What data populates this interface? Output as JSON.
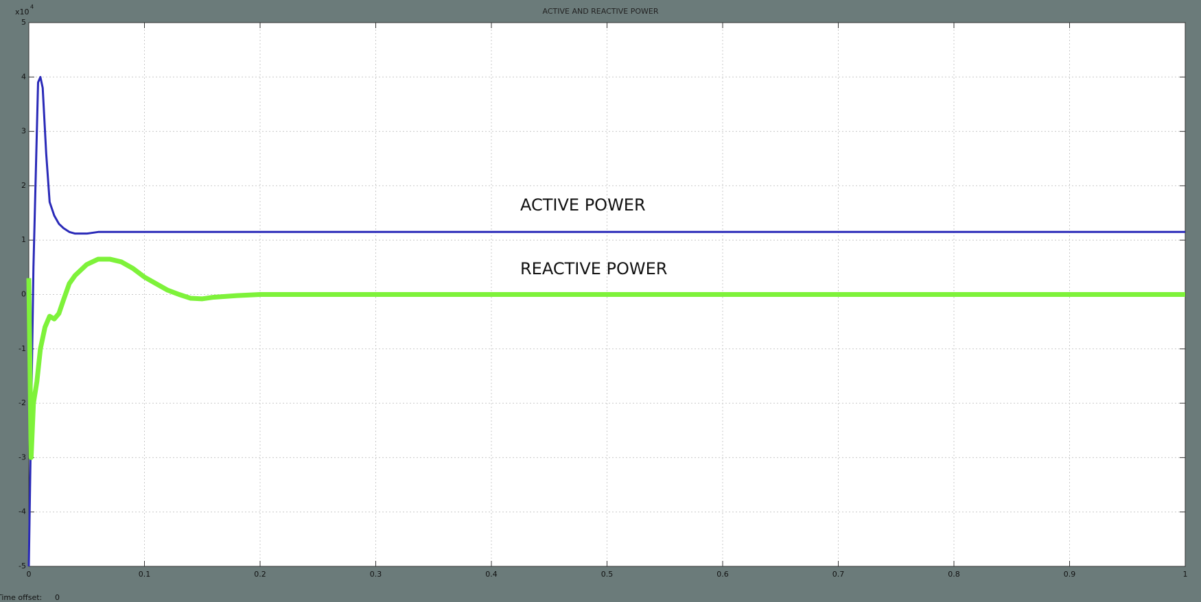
{
  "chart_data": {
    "type": "line",
    "title": "ACTIVE AND REACTIVE POWER",
    "y_scale_label": "x10",
    "y_scale_exponent": "4",
    "annotations": [
      "ACTIVE POWER",
      "REACTIVE POWER"
    ],
    "footer_label": "Time offset:",
    "footer_value": 0,
    "xlim": [
      0,
      1
    ],
    "xticks": [
      0,
      0.1,
      0.2,
      0.3,
      0.4,
      0.5,
      0.6,
      0.7,
      0.8,
      0.9,
      1
    ],
    "ylim": [
      -5,
      5
    ],
    "yticks": [
      -5,
      -4,
      -3,
      -2,
      -1,
      0,
      1,
      2,
      3,
      4,
      5
    ],
    "grid": true,
    "series": [
      {
        "name": "ACTIVE POWER",
        "color": "#2a2ab8",
        "x": [
          0,
          0.004,
          0.008,
          0.01,
          0.012,
          0.015,
          0.018,
          0.022,
          0.026,
          0.03,
          0.035,
          0.04,
          0.05,
          0.06,
          0.08,
          0.1,
          0.2,
          0.3,
          0.4,
          0.5,
          0.6,
          0.7,
          0.8,
          0.9,
          1
        ],
        "values": [
          -5,
          0.5,
          3.9,
          4.0,
          3.8,
          2.6,
          1.7,
          1.45,
          1.3,
          1.22,
          1.15,
          1.12,
          1.12,
          1.15,
          1.15,
          1.15,
          1.15,
          1.15,
          1.15,
          1.15,
          1.15,
          1.15,
          1.15,
          1.15,
          1.15
        ]
      },
      {
        "name": "REACTIVE POWER",
        "color": "#7ef23a",
        "x": [
          0,
          0.002,
          0.004,
          0.007,
          0.01,
          0.014,
          0.018,
          0.022,
          0.026,
          0.03,
          0.035,
          0.04,
          0.05,
          0.06,
          0.07,
          0.08,
          0.09,
          0.1,
          0.11,
          0.12,
          0.13,
          0.14,
          0.15,
          0.16,
          0.18,
          0.2,
          0.3,
          0.4,
          0.5,
          0.6,
          0.7,
          0.8,
          0.9,
          1
        ],
        "values": [
          0.3,
          -3.0,
          -2.0,
          -1.6,
          -1.0,
          -0.6,
          -0.4,
          -0.45,
          -0.35,
          -0.1,
          0.2,
          0.35,
          0.55,
          0.65,
          0.65,
          0.6,
          0.48,
          0.32,
          0.2,
          0.08,
          0.0,
          -0.07,
          -0.08,
          -0.05,
          -0.02,
          0,
          0,
          0,
          0,
          0,
          0,
          0,
          0,
          0
        ]
      }
    ]
  }
}
